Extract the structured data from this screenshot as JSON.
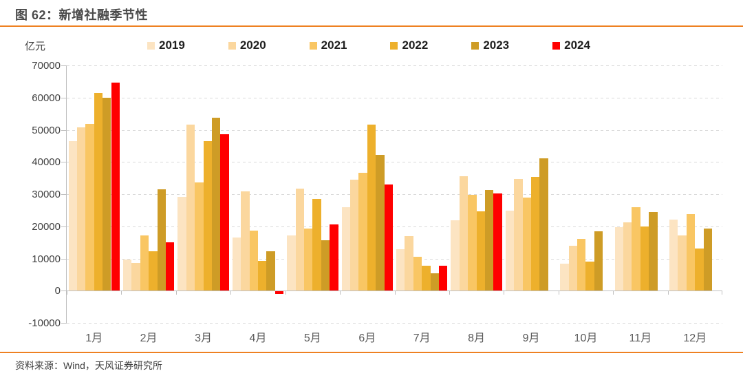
{
  "header": {
    "title": "图 62：新增社融季节性"
  },
  "footer": {
    "source": "资料来源：Wind，天风证券研究所"
  },
  "colors": {
    "accent_rule": "#ee8122",
    "axis_line": "#bfbfbf",
    "gridline": "#d9d9d9",
    "title_text": "#4a4a4a",
    "axis_text": "#404040"
  },
  "chart_data": {
    "type": "bar",
    "title": "新增社融季节性",
    "unit_label": "亿元",
    "ylabel": "亿元",
    "xlabel": "",
    "ylim": [
      -10000,
      70000
    ],
    "ytick_step": 10000,
    "grid": "dashed-horizontal",
    "legend_position": "top",
    "categories": [
      "1月",
      "2月",
      "3月",
      "4月",
      "5月",
      "6月",
      "7月",
      "8月",
      "9月",
      "10月",
      "11月",
      "12月"
    ],
    "series": [
      {
        "name": "2019",
        "color": "#fce4c2",
        "values": [
          46500,
          9700,
          29200,
          16600,
          17100,
          26000,
          12900,
          21800,
          24900,
          8500,
          19700,
          22000
        ]
      },
      {
        "name": "2020",
        "color": "#fbd79e",
        "values": [
          50700,
          8600,
          51600,
          30900,
          31700,
          34400,
          16900,
          35600,
          34700,
          14000,
          21200,
          17200
        ]
      },
      {
        "name": "2021",
        "color": "#f9c663",
        "values": [
          51800,
          17100,
          33600,
          18600,
          19200,
          36700,
          10600,
          29700,
          29000,
          16100,
          25900,
          23700
        ]
      },
      {
        "name": "2022",
        "color": "#edb02c",
        "values": [
          61500,
          12200,
          46500,
          9200,
          28400,
          51700,
          7700,
          24600,
          35300,
          9100,
          19900,
          13100
        ]
      },
      {
        "name": "2023",
        "color": "#ce9c26",
        "values": [
          59900,
          31500,
          53800,
          12300,
          15600,
          42200,
          5300,
          31200,
          41200,
          18400,
          24500,
          19400
        ]
      },
      {
        "name": "2024",
        "color": "#ff0000",
        "values": [
          64700,
          15000,
          48700,
          -700,
          20600,
          32900,
          7800,
          30200,
          null,
          null,
          null,
          null
        ]
      }
    ]
  }
}
